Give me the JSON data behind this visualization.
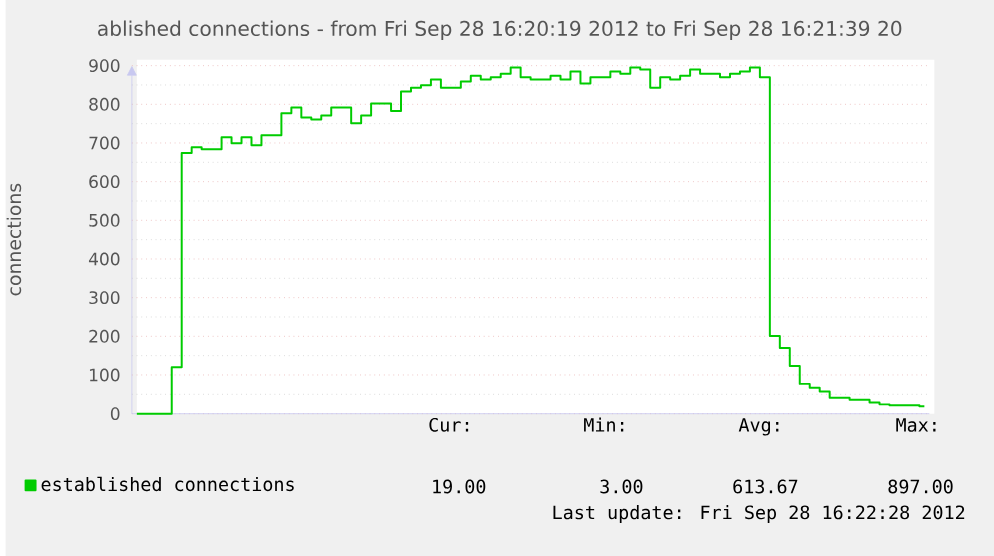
{
  "chart_data": {
    "type": "step",
    "title": "ablished connections - from Fri Sep 28 16:20:19 2012 to Fri Sep 28 16:21:39 20",
    "ylabel": "connections",
    "categories": [
      null,
      null,
      null,
      null,
      null,
      null,
      null,
      null,
      null,
      null,
      null,
      null,
      null,
      null,
      null,
      null,
      null,
      null,
      null,
      null,
      null,
      null,
      null,
      null,
      null,
      null,
      null,
      null,
      null,
      null,
      null,
      null,
      null,
      null,
      null,
      null,
      null,
      null,
      null,
      null,
      null,
      null,
      null,
      null,
      null,
      null,
      null,
      null,
      null,
      null,
      null,
      null,
      null,
      null,
      null,
      null,
      null,
      null,
      null,
      null,
      null,
      null,
      null,
      null,
      null,
      null,
      null,
      null,
      null,
      null,
      null,
      null,
      null,
      null,
      null,
      null,
      null,
      null,
      null,
      null
    ],
    "series": [
      {
        "name": "established connections",
        "color": "#00cc00",
        "values": [
          0,
          0,
          0,
          0,
          120,
          674,
          689,
          684,
          684,
          715,
          699,
          715,
          694,
          720,
          720,
          777,
          792,
          766,
          761,
          771,
          792,
          792,
          751,
          771,
          802,
          802,
          783,
          833,
          843,
          849,
          864,
          843,
          843,
          859,
          874,
          864,
          870,
          879,
          895,
          870,
          864,
          864,
          874,
          864,
          885,
          854,
          870,
          870,
          885,
          879,
          895,
          890,
          843,
          870,
          864,
          874,
          890,
          879,
          879,
          870,
          879,
          885,
          895,
          870,
          201,
          170,
          123,
          77,
          67,
          57,
          41,
          41,
          36,
          36,
          29,
          24,
          22,
          22,
          22,
          19
        ]
      }
    ],
    "ylim": [
      0,
      900
    ],
    "yticks": [
      0,
      100,
      200,
      300,
      400,
      500,
      600,
      700,
      800,
      900
    ],
    "grid": "y",
    "legend": "bottom left",
    "annotations": [
      "Cur:",
      "Min:",
      "Avg:",
      "Max:",
      "19.00",
      "3.00",
      "613.67",
      "897.00",
      "Last update: Fri Sep 28 16:22:28 2012"
    ]
  }
}
